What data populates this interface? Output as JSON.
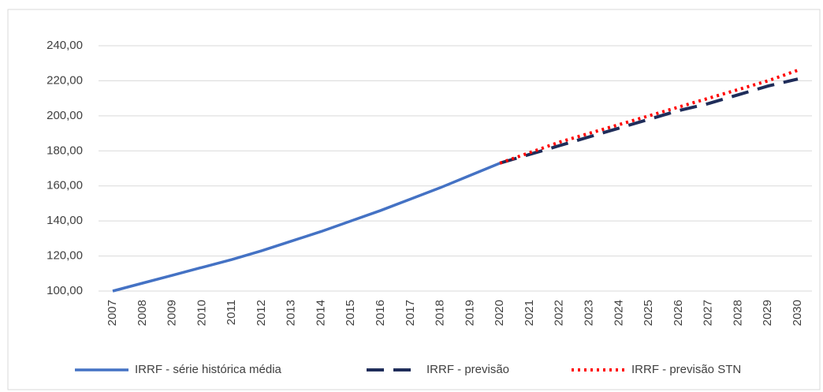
{
  "chart_data": {
    "type": "line",
    "categories": [
      "2007",
      "2008",
      "2009",
      "2010",
      "2011",
      "2012",
      "2013",
      "2014",
      "2015",
      "2016",
      "2017",
      "2018",
      "2019",
      "2020",
      "2021",
      "2022",
      "2023",
      "2024",
      "2025",
      "2026",
      "2027",
      "2028",
      "2029",
      "2030"
    ],
    "series": [
      {
        "name": "IRRF - série histórica média",
        "color": "#4472c4",
        "style": "solid",
        "values": [
          100,
          104.5,
          109,
          113.5,
          118,
          123,
          128.5,
          134,
          140,
          146,
          152.5,
          159,
          166,
          173,
          null,
          null,
          null,
          null,
          null,
          null,
          null,
          null,
          null,
          null
        ]
      },
      {
        "name": "IRRF - previsão",
        "color": "#1f2d5a",
        "style": "dashed",
        "values": [
          null,
          null,
          null,
          null,
          null,
          null,
          null,
          null,
          null,
          null,
          null,
          null,
          null,
          173,
          178,
          183,
          188,
          193,
          198,
          203,
          207,
          212,
          217,
          221
        ]
      },
      {
        "name": "IRRF - previsão STN",
        "color": "#ff0000",
        "style": "dotted",
        "values": [
          null,
          null,
          null,
          null,
          null,
          null,
          null,
          null,
          null,
          null,
          null,
          null,
          null,
          173,
          179,
          185,
          190,
          195,
          200,
          205,
          210,
          215,
          220,
          226
        ]
      }
    ],
    "ylim": [
      100,
      240
    ],
    "yticks": [
      {
        "value": 100,
        "label": "100,00"
      },
      {
        "value": 120,
        "label": "120,00"
      },
      {
        "value": 140,
        "label": "140,00"
      },
      {
        "value": 160,
        "label": "160,00"
      },
      {
        "value": 180,
        "label": "180,00"
      },
      {
        "value": 200,
        "label": "200,00"
      },
      {
        "value": 220,
        "label": "220,00"
      },
      {
        "value": 240,
        "label": "240,00"
      }
    ],
    "grid": true,
    "legend": "bottom"
  }
}
